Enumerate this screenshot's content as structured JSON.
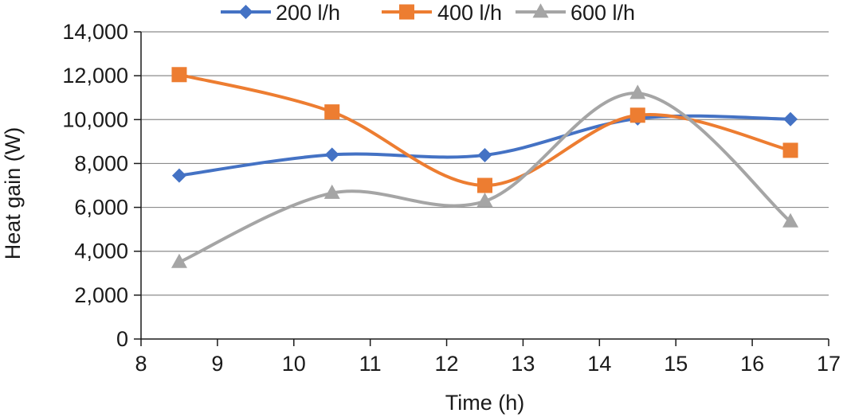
{
  "chart_data": {
    "type": "line",
    "title": "",
    "xlabel": "Time (h)",
    "ylabel": "Heat gain (W)",
    "xlim": [
      8,
      17
    ],
    "ylim": [
      0,
      14000
    ],
    "x_ticks": [
      8,
      9,
      10,
      11,
      12,
      13,
      14,
      15,
      16,
      17
    ],
    "y_ticks": [
      0,
      2000,
      4000,
      6000,
      8000,
      10000,
      12000,
      14000
    ],
    "x_tick_labels": [
      "8",
      "9",
      "10",
      "11",
      "12",
      "13",
      "14",
      "15",
      "16",
      "17"
    ],
    "y_tick_labels": [
      "0",
      "2,000",
      "4,000",
      "6,000",
      "8,000",
      "10,000",
      "12,000",
      "14,000"
    ],
    "grid": "horizontal",
    "legend_position": "top",
    "smooth": true,
    "x": [
      8.5,
      10.5,
      12.5,
      14.5,
      16.5
    ],
    "series": [
      {
        "name": "200 l/h",
        "values": [
          7450,
          8400,
          8380,
          10050,
          10020
        ],
        "color": "#4472C4",
        "marker": "diamond"
      },
      {
        "name": "400 l/h",
        "values": [
          12050,
          10350,
          7000,
          10200,
          8600
        ],
        "color": "#ED7D31",
        "marker": "square"
      },
      {
        "name": "600 l/h",
        "values": [
          3500,
          6650,
          6280,
          11200,
          5350
        ],
        "color": "#A5A5A5",
        "marker": "triangle"
      }
    ]
  }
}
